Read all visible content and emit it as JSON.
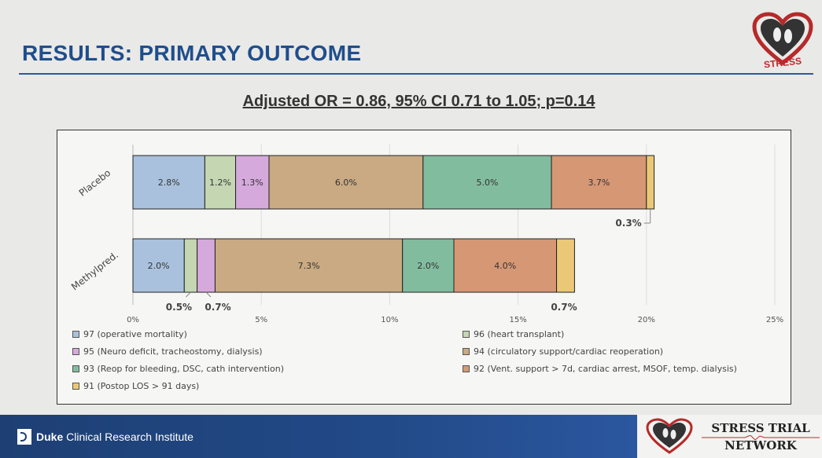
{
  "slide": {
    "title": "RESULTS: PRIMARY OUTCOME",
    "subtitle": "Adjusted OR = 0.86, 95% CI 0.71 to 1.05; p=0.14"
  },
  "branding": {
    "logo_text": "STRESS",
    "institute_bold": "Duke",
    "institute_rest": " Clinical Research Institute",
    "network_line1": "STRESS TRIAL",
    "network_line2": "NETWORK"
  },
  "colors": {
    "title": "#1f4e8c",
    "footer": "#1d3f74"
  },
  "chart_data": {
    "type": "bar",
    "orientation": "horizontal",
    "stacked": true,
    "categories": [
      "Placebo",
      "Methylpred."
    ],
    "x_ticks": [
      "0%",
      "5%",
      "10%",
      "15%",
      "20%",
      "25%"
    ],
    "xlim": [
      0,
      25
    ],
    "grid": true,
    "legend_position": "bottom",
    "series": [
      {
        "name": "97 (operative mortality)",
        "color": "#a9c1dd",
        "values": [
          2.8,
          2.0
        ],
        "labels": [
          "2.8%",
          "2.0%"
        ]
      },
      {
        "name": "96 (heart transplant)",
        "color": "#c4d6b2",
        "values": [
          1.2,
          0.5
        ],
        "labels": [
          "1.2%",
          "0.5%"
        ]
      },
      {
        "name": "95 (Neuro deficit, tracheostomy, dialysis)",
        "color": "#d6a9dc",
        "values": [
          1.3,
          0.7
        ],
        "labels": [
          "1.3%",
          "0.7%"
        ]
      },
      {
        "name": "94 (circulatory support/cardiac reoperation)",
        "color": "#c9aa82",
        "values": [
          6.0,
          7.3
        ],
        "labels": [
          "6.0%",
          "7.3%"
        ]
      },
      {
        "name": "93 (Reop for bleeding, DSC, cath intervention)",
        "color": "#82bc9f",
        "values": [
          5.0,
          2.0
        ],
        "labels": [
          "5.0%",
          "2.0%"
        ]
      },
      {
        "name": "92 (Vent. support > 7d, cardiac arrest, MSOF, temp. dialysis)",
        "color": "#d69775",
        "values": [
          3.7,
          4.0
        ],
        "labels": [
          "3.7%",
          "4.0%"
        ]
      },
      {
        "name": "91 (Postop LOS > 91 days)",
        "color": "#ebc878",
        "values": [
          0.3,
          0.7
        ],
        "labels": [
          "0.3%",
          "0.7%"
        ]
      }
    ]
  }
}
